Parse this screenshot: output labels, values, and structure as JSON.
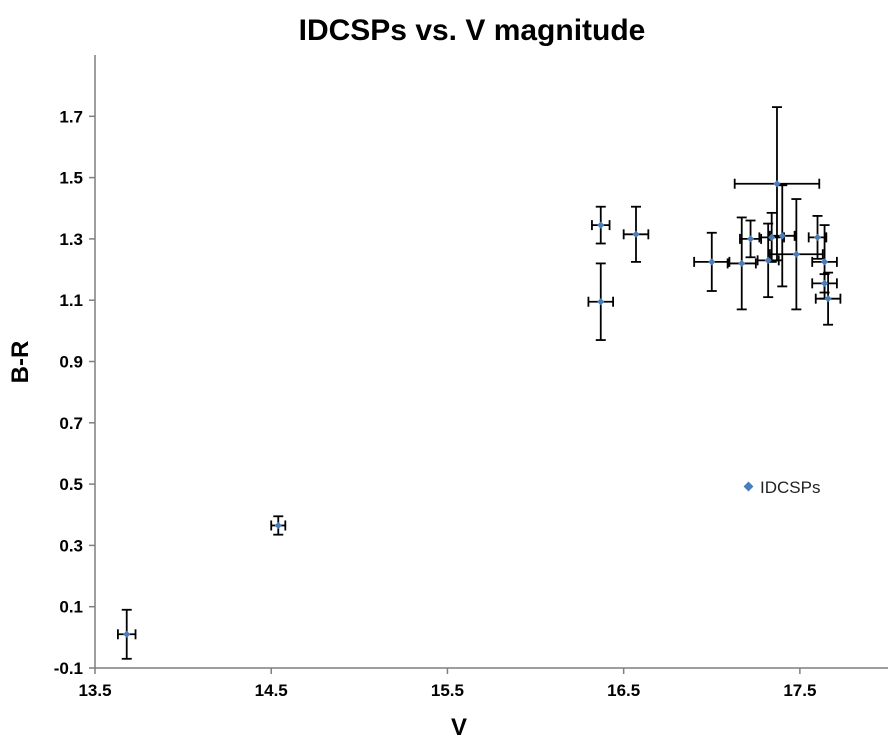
{
  "colors": {
    "marker": "#4a7ebb",
    "error_bar": "#000000",
    "axis": "#7f7f7f"
  },
  "chart_data": {
    "type": "scatter",
    "title": "IDCSPs vs. V magnitude",
    "xlabel": "V",
    "ylabel": "B-R",
    "xlim": [
      13.5,
      18.0
    ],
    "ylim": [
      -0.1,
      1.9
    ],
    "x_ticks": [
      "13.5",
      "14.5",
      "15.5",
      "16.5",
      "17.5"
    ],
    "y_ticks": [
      "-0.1",
      "0.1",
      "0.3",
      "0.5",
      "0.7",
      "0.9",
      "1.1",
      "1.3",
      "1.5",
      "1.7"
    ],
    "grid": false,
    "legend_position": "right",
    "series": [
      {
        "name": "IDCSPs",
        "points": [
          {
            "x": 13.68,
            "y": 0.01,
            "xerr": 0.05,
            "yerr": 0.08
          },
          {
            "x": 14.54,
            "y": 0.365,
            "xerr": 0.04,
            "yerr": 0.03
          },
          {
            "x": 16.37,
            "y": 1.345,
            "xerr": 0.05,
            "yerr": 0.06
          },
          {
            "x": 16.57,
            "y": 1.315,
            "xerr": 0.07,
            "yerr": 0.09
          },
          {
            "x": 16.37,
            "y": 1.095,
            "xerr": 0.07,
            "yerr": 0.125
          },
          {
            "x": 17.0,
            "y": 1.225,
            "xerr": 0.1,
            "yerr": 0.095
          },
          {
            "x": 17.17,
            "y": 1.22,
            "xerr": 0.08,
            "yerr": 0.15
          },
          {
            "x": 17.22,
            "y": 1.3,
            "xerr": 0.06,
            "yerr": 0.06
          },
          {
            "x": 17.32,
            "y": 1.23,
            "xerr": 0.06,
            "yerr": 0.12
          },
          {
            "x": 17.34,
            "y": 1.305,
            "xerr": 0.07,
            "yerr": 0.08
          },
          {
            "x": 17.37,
            "y": 1.48,
            "xerr": 0.24,
            "yerr": 0.25
          },
          {
            "x": 17.4,
            "y": 1.31,
            "xerr": 0.07,
            "yerr": 0.165
          },
          {
            "x": 17.48,
            "y": 1.25,
            "xerr": 0.15,
            "yerr": 0.18
          },
          {
            "x": 17.6,
            "y": 1.305,
            "xerr": 0.05,
            "yerr": 0.07
          },
          {
            "x": 17.64,
            "y": 1.225,
            "xerr": 0.07,
            "yerr": 0.12
          },
          {
            "x": 17.64,
            "y": 1.155,
            "xerr": 0.07,
            "yerr": 0.03
          },
          {
            "x": 17.66,
            "y": 1.105,
            "xerr": 0.07,
            "yerr": 0.085
          }
        ]
      }
    ]
  }
}
